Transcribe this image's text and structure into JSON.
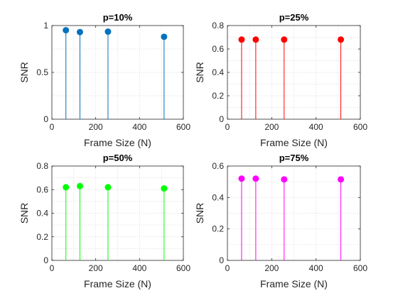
{
  "chart_data": [
    {
      "type": "stem",
      "title": "p=10%",
      "xlabel": "Frame Size (N)",
      "ylabel": "SNR",
      "xlim": [
        0,
        600
      ],
      "ylim": [
        0,
        1
      ],
      "xticks": [
        0,
        200,
        400,
        600
      ],
      "yticks": [
        0,
        0.5,
        1
      ],
      "grid": "dotted",
      "color": "#0072BD",
      "x": [
        64,
        128,
        256,
        512
      ],
      "y": [
        0.95,
        0.93,
        0.935,
        0.88
      ]
    },
    {
      "type": "stem",
      "title": "p=25%",
      "xlabel": "Frame Size (N)",
      "ylabel": "SNR",
      "xlim": [
        0,
        600
      ],
      "ylim": [
        0,
        0.8
      ],
      "xticks": [
        0,
        200,
        400,
        600
      ],
      "yticks": [
        0,
        0.2,
        0.4,
        0.6,
        0.8
      ],
      "grid": "dotted",
      "color": "#FF0000",
      "x": [
        64,
        128,
        256,
        512
      ],
      "y": [
        0.68,
        0.68,
        0.68,
        0.68
      ]
    },
    {
      "type": "stem",
      "title": "p=50%",
      "xlabel": "Frame Size (N)",
      "ylabel": "SNR",
      "xlim": [
        0,
        600
      ],
      "ylim": [
        0,
        0.8
      ],
      "xticks": [
        0,
        200,
        400,
        600
      ],
      "yticks": [
        0,
        0.2,
        0.4,
        0.6,
        0.8
      ],
      "grid": "dotted",
      "color": "#00FF00",
      "x": [
        64,
        128,
        256,
        512
      ],
      "y": [
        0.62,
        0.63,
        0.62,
        0.61
      ]
    },
    {
      "type": "stem",
      "title": "p=75%",
      "xlabel": "Frame Size (N)",
      "ylabel": "SNR",
      "xlim": [
        0,
        600
      ],
      "ylim": [
        0,
        0.6
      ],
      "xticks": [
        0,
        200,
        400,
        600
      ],
      "yticks": [
        0,
        0.2,
        0.4,
        0.6
      ],
      "grid": "dotted",
      "color": "#FF00FF",
      "x": [
        64,
        128,
        256,
        512
      ],
      "y": [
        0.52,
        0.52,
        0.515,
        0.515
      ]
    }
  ]
}
